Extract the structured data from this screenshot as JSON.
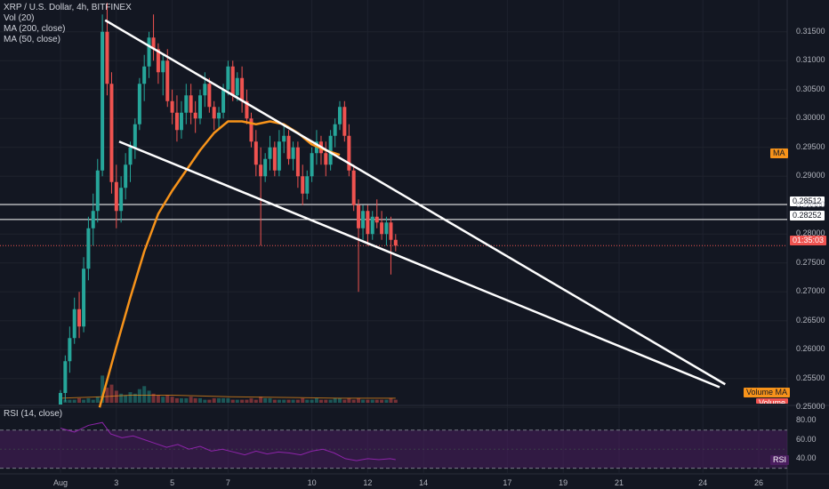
{
  "legend": {
    "symbol": "XRP / U.S. Dollar, 4h, BITFINEX",
    "vol": "Vol (20)",
    "ma200": "MA (200, close)",
    "ma50": "MA (50, close)",
    "rsi": "RSI (14, close)"
  },
  "tags": {
    "ma": "MA",
    "level1": "0.28512",
    "level2": "0.28252",
    "countdown": "01:35:03",
    "volume_ma": "Volume MA",
    "volume": "Volume",
    "rsi": "RSI"
  },
  "colors": {
    "background": "#131722",
    "up": "#26a69a",
    "down": "#ef5350",
    "ma200": "#f7931a",
    "volume_ma": "#f7931a",
    "rsi_line": "#8e24aa",
    "rsi_band": "#4a1d5f",
    "trendline": "#ffffff",
    "level_line": "#ffffff"
  },
  "chart_data": {
    "type": "candlestick",
    "symbol": "XRP / U.S. Dollar",
    "timeframe": "4h",
    "exchange": "BITFINEX",
    "price_axis": {
      "ylim": [
        0.2505,
        0.3205
      ],
      "ticks": [
        "0.31500",
        "0.31000",
        "0.30500",
        "0.30000",
        "0.29500",
        "0.29000",
        "0.28500",
        "0.28000",
        "0.27500",
        "0.27000",
        "0.26500",
        "0.26000",
        "0.25500",
        "0.25000"
      ],
      "tick_values": [
        0.315,
        0.31,
        0.305,
        0.3,
        0.295,
        0.29,
        0.285,
        0.28,
        0.275,
        0.27,
        0.265,
        0.26,
        0.255,
        0.25
      ]
    },
    "time_axis": {
      "labels": [
        "Aug",
        "3",
        "5",
        "7",
        "10",
        "12",
        "14",
        "17",
        "19",
        "21",
        "24",
        "26"
      ],
      "day_index": [
        0,
        2,
        4,
        6,
        9,
        11,
        13,
        16,
        18,
        20,
        23,
        25
      ]
    },
    "candles": [
      [
        0.0,
        0.2505,
        0.253,
        0.2505,
        0.2525
      ],
      [
        0.17,
        0.2525,
        0.259,
        0.251,
        0.258
      ],
      [
        0.33,
        0.258,
        0.264,
        0.256,
        0.262
      ],
      [
        0.5,
        0.262,
        0.269,
        0.261,
        0.267
      ],
      [
        0.67,
        0.267,
        0.27,
        0.262,
        0.264
      ],
      [
        0.83,
        0.264,
        0.276,
        0.263,
        0.274
      ],
      [
        1.0,
        0.274,
        0.283,
        0.272,
        0.281
      ],
      [
        1.17,
        0.281,
        0.287,
        0.278,
        0.284
      ],
      [
        1.33,
        0.284,
        0.293,
        0.282,
        0.291
      ],
      [
        1.5,
        0.291,
        0.318,
        0.29,
        0.315
      ],
      [
        1.67,
        0.315,
        0.32,
        0.304,
        0.306
      ],
      [
        1.83,
        0.306,
        0.308,
        0.287,
        0.289
      ],
      [
        2.0,
        0.289,
        0.292,
        0.281,
        0.284
      ],
      [
        2.17,
        0.284,
        0.29,
        0.282,
        0.288
      ],
      [
        2.33,
        0.288,
        0.294,
        0.286,
        0.292
      ],
      [
        2.5,
        0.292,
        0.296,
        0.289,
        0.295
      ],
      [
        2.67,
        0.295,
        0.3,
        0.293,
        0.299
      ],
      [
        2.83,
        0.299,
        0.307,
        0.298,
        0.306
      ],
      [
        3.0,
        0.306,
        0.311,
        0.303,
        0.309
      ],
      [
        3.17,
        0.309,
        0.315,
        0.307,
        0.314
      ],
      [
        3.33,
        0.314,
        0.318,
        0.31,
        0.312
      ],
      [
        3.5,
        0.312,
        0.313,
        0.306,
        0.308
      ],
      [
        3.67,
        0.308,
        0.311,
        0.304,
        0.31
      ],
      [
        3.83,
        0.31,
        0.312,
        0.302,
        0.303
      ],
      [
        4.0,
        0.303,
        0.305,
        0.299,
        0.301
      ],
      [
        4.17,
        0.301,
        0.304,
        0.296,
        0.298
      ],
      [
        4.33,
        0.298,
        0.303,
        0.2965,
        0.301
      ],
      [
        4.5,
        0.301,
        0.306,
        0.299,
        0.304
      ],
      [
        4.67,
        0.304,
        0.306,
        0.299,
        0.301
      ],
      [
        4.83,
        0.301,
        0.303,
        0.2975,
        0.3
      ],
      [
        5.0,
        0.3,
        0.305,
        0.299,
        0.304
      ],
      [
        5.17,
        0.304,
        0.308,
        0.302,
        0.306
      ],
      [
        5.33,
        0.306,
        0.307,
        0.301,
        0.302
      ],
      [
        5.5,
        0.302,
        0.303,
        0.298,
        0.3
      ],
      [
        5.67,
        0.3,
        0.302,
        0.298,
        0.301
      ],
      [
        5.83,
        0.301,
        0.306,
        0.3,
        0.305
      ],
      [
        6.0,
        0.305,
        0.31,
        0.304,
        0.309
      ],
      [
        6.17,
        0.309,
        0.31,
        0.303,
        0.304
      ],
      [
        6.33,
        0.304,
        0.308,
        0.303,
        0.307
      ],
      [
        6.5,
        0.307,
        0.309,
        0.301,
        0.303
      ],
      [
        6.67,
        0.303,
        0.305,
        0.299,
        0.3
      ],
      [
        6.83,
        0.3,
        0.301,
        0.295,
        0.296
      ],
      [
        7.0,
        0.296,
        0.298,
        0.29,
        0.292
      ],
      [
        7.17,
        0.292,
        0.295,
        0.278,
        0.29
      ],
      [
        7.33,
        0.29,
        0.294,
        0.289,
        0.293
      ],
      [
        7.5,
        0.293,
        0.297,
        0.291,
        0.295
      ],
      [
        7.67,
        0.295,
        0.296,
        0.29,
        0.291
      ],
      [
        7.83,
        0.291,
        0.298,
        0.29,
        0.296
      ],
      [
        8.0,
        0.296,
        0.299,
        0.294,
        0.297
      ],
      [
        8.17,
        0.297,
        0.298,
        0.292,
        0.293
      ],
      [
        8.33,
        0.293,
        0.296,
        0.291,
        0.295
      ],
      [
        8.5,
        0.295,
        0.296,
        0.288,
        0.29
      ],
      [
        8.67,
        0.29,
        0.292,
        0.285,
        0.287
      ],
      [
        8.83,
        0.287,
        0.291,
        0.286,
        0.29
      ],
      [
        9.0,
        0.29,
        0.295,
        0.289,
        0.294
      ],
      [
        9.17,
        0.294,
        0.298,
        0.292,
        0.296
      ],
      [
        9.33,
        0.296,
        0.297,
        0.292,
        0.294
      ],
      [
        9.5,
        0.294,
        0.296,
        0.29,
        0.292
      ],
      [
        9.67,
        0.292,
        0.298,
        0.291,
        0.297
      ],
      [
        9.83,
        0.297,
        0.3,
        0.295,
        0.299
      ],
      [
        10.0,
        0.299,
        0.303,
        0.298,
        0.302
      ],
      [
        10.17,
        0.302,
        0.303,
        0.296,
        0.297
      ],
      [
        10.33,
        0.297,
        0.299,
        0.29,
        0.291
      ],
      [
        10.5,
        0.291,
        0.292,
        0.284,
        0.285
      ],
      [
        10.67,
        0.285,
        0.286,
        0.27,
        0.281
      ],
      [
        10.83,
        0.281,
        0.285,
        0.279,
        0.284
      ],
      [
        11.0,
        0.284,
        0.285,
        0.278,
        0.28
      ],
      [
        11.17,
        0.28,
        0.284,
        0.279,
        0.283
      ],
      [
        11.33,
        0.283,
        0.286,
        0.281,
        0.282
      ],
      [
        11.5,
        0.282,
        0.284,
        0.279,
        0.28
      ],
      [
        11.67,
        0.28,
        0.283,
        0.278,
        0.282
      ],
      [
        11.83,
        0.282,
        0.283,
        0.273,
        0.279
      ],
      [
        12.0,
        0.279,
        0.28,
        0.277,
        0.278
      ]
    ],
    "ma200": [
      [
        1.4,
        0.25
      ],
      [
        2.0,
        0.2605
      ],
      [
        2.5,
        0.269
      ],
      [
        3.0,
        0.277
      ],
      [
        3.5,
        0.2835
      ],
      [
        4.0,
        0.2875
      ],
      [
        4.5,
        0.291
      ],
      [
        5.0,
        0.2945
      ],
      [
        5.5,
        0.2975
      ],
      [
        6.0,
        0.2995
      ],
      [
        6.5,
        0.2995
      ],
      [
        7.0,
        0.299
      ],
      [
        7.5,
        0.2995
      ],
      [
        8.0,
        0.299
      ],
      [
        8.5,
        0.2975
      ],
      [
        9.0,
        0.2955
      ],
      [
        9.5,
        0.2945
      ],
      [
        10.0,
        0.2937
      ]
    ],
    "levels": [
      0.28512,
      0.28252
    ],
    "last_price": 0.278,
    "trendlines": [
      {
        "from": [
          1.6,
          0.317
        ],
        "to": [
          23.8,
          0.254
        ]
      },
      {
        "from": [
          2.1,
          0.296
        ],
        "to": [
          23.6,
          0.2535
        ]
      }
    ],
    "volume": [
      3,
      2,
      2,
      2,
      3,
      2,
      3,
      2,
      4,
      18,
      10,
      12,
      8,
      6,
      5,
      7,
      6,
      9,
      11,
      8,
      6,
      5,
      4,
      5,
      4,
      3,
      3,
      3,
      4,
      3,
      3,
      2,
      2,
      3,
      3,
      3,
      3,
      2,
      2,
      2,
      2,
      3,
      2,
      4,
      3,
      3,
      2,
      2,
      2,
      2,
      2,
      2,
      3,
      2,
      2,
      3,
      2,
      2,
      2,
      3,
      3,
      2,
      3,
      2,
      3,
      2,
      2,
      2,
      2,
      2,
      2,
      3,
      2
    ],
    "volume_ma": [
      [
        0,
        3
      ],
      [
        1.5,
        4
      ],
      [
        2.5,
        5
      ],
      [
        4,
        5
      ],
      [
        6,
        4
      ],
      [
        8,
        3.5
      ],
      [
        10,
        3
      ],
      [
        12,
        3
      ]
    ],
    "rsi": {
      "ylim": [
        25,
        95
      ],
      "ticks": [
        "80.00",
        "60.00",
        "40.00"
      ],
      "tick_values": [
        80,
        60,
        40
      ],
      "band": [
        30,
        70
      ],
      "values": [
        [
          0,
          72
        ],
        [
          0.5,
          68
        ],
        [
          1.0,
          75
        ],
        [
          1.5,
          78
        ],
        [
          1.8,
          66
        ],
        [
          2.2,
          62
        ],
        [
          2.6,
          64
        ],
        [
          3.0,
          60
        ],
        [
          3.4,
          56
        ],
        [
          3.8,
          52
        ],
        [
          4.2,
          55
        ],
        [
          4.6,
          50
        ],
        [
          5.0,
          53
        ],
        [
          5.4,
          48
        ],
        [
          5.8,
          50
        ],
        [
          6.2,
          47
        ],
        [
          6.6,
          44
        ],
        [
          7.0,
          48
        ],
        [
          7.4,
          45
        ],
        [
          7.8,
          47
        ],
        [
          8.2,
          46
        ],
        [
          8.6,
          44
        ],
        [
          9.0,
          48
        ],
        [
          9.4,
          50
        ],
        [
          9.8,
          46
        ],
        [
          10.2,
          40
        ],
        [
          10.6,
          38
        ],
        [
          11.0,
          40
        ],
        [
          11.4,
          39
        ],
        [
          11.8,
          40
        ],
        [
          12.0,
          39
        ]
      ]
    }
  }
}
